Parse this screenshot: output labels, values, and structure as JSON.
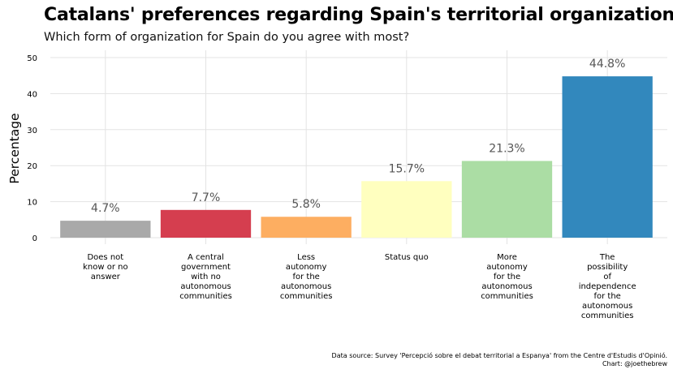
{
  "title": "Catalans' preferences regarding Spain's territorial organization",
  "subtitle": "Which form of organization for Spain do you agree with most?",
  "caption": {
    "source": "Data source: Survey 'Percepció sobre el debat territorial a Espanya' from the Centre d'Estudis d'Opinió.",
    "credit": "Chart: @joethebrew"
  },
  "chart_data": {
    "type": "bar",
    "title": "Catalans' preferences regarding Spain's territorial organization",
    "subtitle": "Which form of organization for Spain do you agree with most?",
    "xlabel": "",
    "ylabel": "Percentage",
    "ylim": [
      0,
      50
    ],
    "yticks": [
      0,
      10,
      20,
      30,
      40,
      50
    ],
    "grid": true,
    "categories": [
      [
        "Does not",
        "know or no",
        "answer"
      ],
      [
        "A central",
        "government",
        "with no",
        "autonomous",
        "communities"
      ],
      [
        "Less",
        "autonomy",
        "for the",
        "autonomous",
        "communities"
      ],
      [
        "Status quo"
      ],
      [
        "More",
        "autonomy",
        "for the",
        "autonomous",
        "communities"
      ],
      [
        "The",
        "possibility",
        "of",
        "independence",
        "for the",
        "autonomous",
        "communities"
      ]
    ],
    "values": [
      4.7,
      7.7,
      5.8,
      15.7,
      21.3,
      44.8
    ],
    "labels": [
      "4.7%",
      "7.7%",
      "5.8%",
      "15.7%",
      "21.3%",
      "44.8%"
    ],
    "colors": [
      "#a9a9a9",
      "#d53e4f",
      "#fdae61",
      "#ffffbf",
      "#abdda4",
      "#3288bd"
    ]
  }
}
